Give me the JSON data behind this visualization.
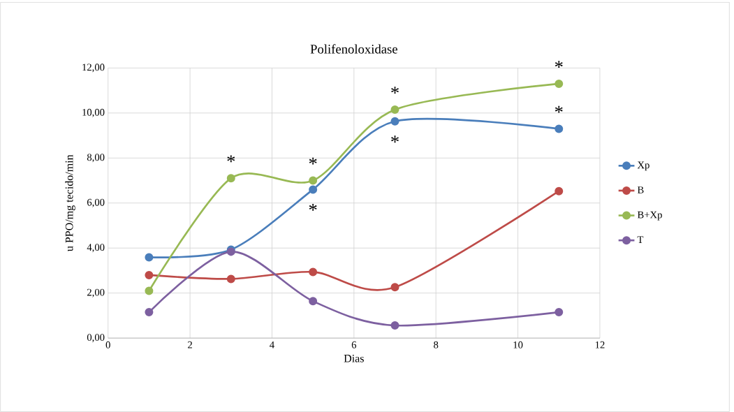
{
  "chart_data": {
    "type": "line",
    "title": "Polifenoloxidase",
    "xlabel": "Dias",
    "ylabel": "u PPO/mg tecido/min",
    "x": [
      1,
      3,
      5,
      7,
      11
    ],
    "series": [
      {
        "name": "Xp",
        "color": "#4a7ebb",
        "values": [
          3.59,
          3.93,
          6.6,
          9.63,
          9.3
        ]
      },
      {
        "name": "B",
        "color": "#be4b48",
        "values": [
          2.8,
          2.63,
          2.94,
          2.26,
          6.53
        ]
      },
      {
        "name": "B+Xp",
        "color": "#98b954",
        "values": [
          2.1,
          7.1,
          7.0,
          10.15,
          11.3
        ]
      },
      {
        "name": "T",
        "color": "#7d60a0",
        "values": [
          1.15,
          3.84,
          1.64,
          0.56,
          1.15
        ]
      }
    ],
    "xlim": [
      0,
      12
    ],
    "xticks": [
      0,
      2,
      4,
      6,
      8,
      10,
      12
    ],
    "ylim": [
      0,
      12
    ],
    "yticks": [
      {
        "value": 0,
        "label": "0,00"
      },
      {
        "value": 2,
        "label": "2,00"
      },
      {
        "value": 4,
        "label": "4,00"
      },
      {
        "value": 6,
        "label": "6,00"
      },
      {
        "value": 8,
        "label": "8,00"
      },
      {
        "value": 10,
        "label": "10,00"
      },
      {
        "value": 12,
        "label": "12,00"
      }
    ],
    "grid": true,
    "legend": "right",
    "marker": "circle",
    "line_style": "solid",
    "annotations": [
      {
        "text": "*",
        "x": 3,
        "y": 7.1
      },
      {
        "text": "*",
        "x": 5,
        "y": 7.0
      },
      {
        "text": "*",
        "x": 5,
        "y": 6.6
      },
      {
        "text": "*",
        "x": 7,
        "y": 10.15
      },
      {
        "text": "*",
        "x": 7,
        "y": 9.63
      },
      {
        "text": "*",
        "x": 11,
        "y": 11.3
      },
      {
        "text": "*",
        "x": 11,
        "y": 9.3
      }
    ]
  }
}
